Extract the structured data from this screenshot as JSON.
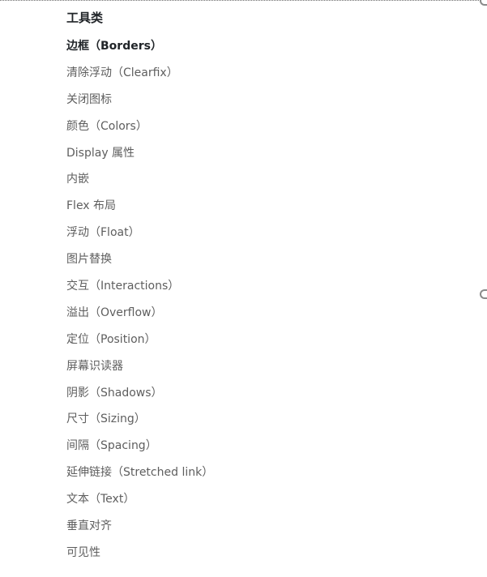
{
  "sidebar": {
    "heading": "工具类",
    "items": [
      {
        "label": "边框（Borders）",
        "active": true
      },
      {
        "label": "清除浮动（Clearfix）",
        "active": false
      },
      {
        "label": "关闭图标",
        "active": false
      },
      {
        "label": "颜色（Colors）",
        "active": false
      },
      {
        "label": "Display 属性",
        "active": false
      },
      {
        "label": "内嵌",
        "active": false
      },
      {
        "label": "Flex 布局",
        "active": false
      },
      {
        "label": "浮动（Float）",
        "active": false
      },
      {
        "label": "图片替换",
        "active": false
      },
      {
        "label": "交互（Interactions）",
        "active": false
      },
      {
        "label": "溢出（Overflow）",
        "active": false
      },
      {
        "label": "定位（Position）",
        "active": false
      },
      {
        "label": "屏幕识读器",
        "active": false
      },
      {
        "label": "阴影（Shadows）",
        "active": false
      },
      {
        "label": "尺寸（Sizing）",
        "active": false
      },
      {
        "label": "间隔（Spacing）",
        "active": false
      },
      {
        "label": "延伸链接（Stretched link）",
        "active": false
      },
      {
        "label": "文本（Text）",
        "active": false
      },
      {
        "label": "垂直对齐",
        "active": false
      },
      {
        "label": "可见性",
        "active": false
      }
    ]
  },
  "colors": {
    "heading_text": "#212529",
    "item_text": "#5e5e5e",
    "border": "#6b6b6b"
  }
}
